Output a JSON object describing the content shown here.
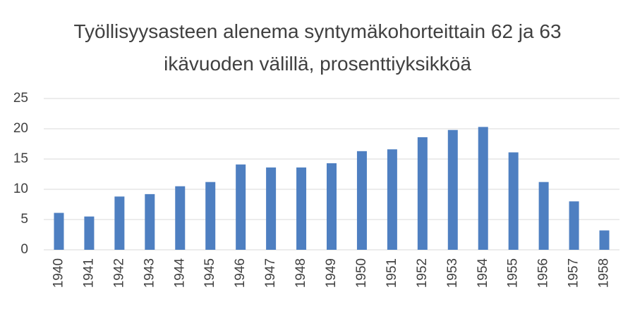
{
  "chart_data": {
    "type": "bar",
    "title": "Työllisyysasteen alenema syntymäkohorteittain 62 ja 63 ikävuoden välillä, prosenttiyksikköä",
    "categories": [
      "1940",
      "1941",
      "1942",
      "1943",
      "1944",
      "1945",
      "1946",
      "1947",
      "1948",
      "1949",
      "1950",
      "1951",
      "1952",
      "1953",
      "1954",
      "1955",
      "1956",
      "1957",
      "1958"
    ],
    "values": [
      6.1,
      5.5,
      8.8,
      9.2,
      10.5,
      11.2,
      14.1,
      13.6,
      13.6,
      14.3,
      16.3,
      16.6,
      18.6,
      19.8,
      20.3,
      16.1,
      11.2,
      8.0,
      3.2
    ],
    "color": "#4e7fc1",
    "ylim": [
      0,
      25
    ],
    "yticks": [
      0,
      5,
      10,
      15,
      20,
      25
    ],
    "grid": true
  }
}
